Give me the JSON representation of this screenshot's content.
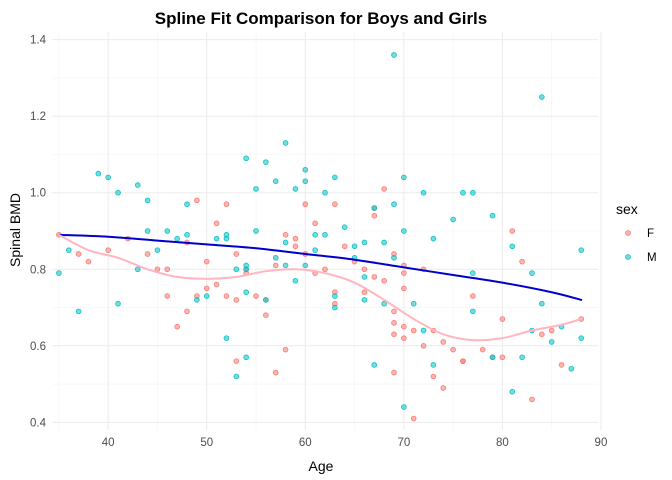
{
  "chart_data": {
    "type": "scatter",
    "title": "Spline Fit Comparison for Boys and Girls",
    "xlabel": "Age",
    "ylabel": "Spinal BMD",
    "xlim": [
      34.3,
      89.7
    ],
    "ylim": [
      0.38,
      1.42
    ],
    "x_ticks": [
      "40",
      "50",
      "60",
      "70",
      "80",
      "90"
    ],
    "x_tick_values": [
      40,
      50,
      60,
      70,
      80,
      90
    ],
    "y_ticks": [
      "0.4",
      "0.6",
      "0.8",
      "1.0",
      "1.2",
      "1.4"
    ],
    "y_tick_values": [
      0.4,
      0.6,
      0.8,
      1.0,
      1.2,
      1.4
    ],
    "grid": true,
    "legend": {
      "title": "sex",
      "position": "right",
      "entries": [
        {
          "label": "F",
          "color": "#F8766D"
        },
        {
          "label": "M",
          "color": "#00BFC4"
        }
      ]
    },
    "series": [
      {
        "name": "F",
        "color": "#F8766D",
        "points": [
          [
            35,
            0.89
          ],
          [
            37,
            0.84
          ],
          [
            38,
            0.82
          ],
          [
            40,
            0.85
          ],
          [
            42,
            0.88
          ],
          [
            44,
            0.84
          ],
          [
            45,
            0.8
          ],
          [
            46,
            0.73
          ],
          [
            46,
            0.8
          ],
          [
            47,
            0.65
          ],
          [
            48,
            0.69
          ],
          [
            48,
            0.87
          ],
          [
            49,
            0.73
          ],
          [
            49,
            0.98
          ],
          [
            50,
            0.82
          ],
          [
            50,
            0.75
          ],
          [
            51,
            0.92
          ],
          [
            51,
            0.76
          ],
          [
            52,
            0.97
          ],
          [
            52,
            0.73
          ],
          [
            53,
            0.56
          ],
          [
            53,
            0.84
          ],
          [
            53,
            0.72
          ],
          [
            54,
            0.8
          ],
          [
            54,
            0.79
          ],
          [
            55,
            0.73
          ],
          [
            56,
            0.68
          ],
          [
            56,
            0.72
          ],
          [
            57,
            0.81
          ],
          [
            57,
            0.53
          ],
          [
            58,
            0.59
          ],
          [
            58,
            0.89
          ],
          [
            59,
            0.88
          ],
          [
            59,
            0.86
          ],
          [
            60,
            0.97
          ],
          [
            60,
            0.84
          ],
          [
            61,
            0.79
          ],
          [
            61,
            0.92
          ],
          [
            62,
            0.8
          ],
          [
            63,
            0.74
          ],
          [
            63,
            0.71
          ],
          [
            63,
            0.97
          ],
          [
            64,
            0.86
          ],
          [
            65,
            0.82
          ],
          [
            66,
            0.8
          ],
          [
            66,
            0.74
          ],
          [
            67,
            0.96
          ],
          [
            67,
            0.94
          ],
          [
            67,
            0.78
          ],
          [
            68,
            1.01
          ],
          [
            68,
            0.77
          ],
          [
            69,
            0.69
          ],
          [
            69,
            0.84
          ],
          [
            69,
            0.66
          ],
          [
            69,
            0.63
          ],
          [
            69,
            0.53
          ],
          [
            70,
            0.79
          ],
          [
            70,
            0.81
          ],
          [
            70,
            0.62
          ],
          [
            70,
            0.75
          ],
          [
            70,
            0.65
          ],
          [
            71,
            0.64
          ],
          [
            71,
            0.41
          ],
          [
            72,
            0.8
          ],
          [
            72,
            0.6
          ],
          [
            73,
            0.64
          ],
          [
            73,
            0.52
          ],
          [
            74,
            0.61
          ],
          [
            74,
            0.49
          ],
          [
            75,
            0.59
          ],
          [
            76,
            0.56
          ],
          [
            76,
            0.56
          ],
          [
            77,
            0.73
          ],
          [
            78,
            0.59
          ],
          [
            79,
            0.57
          ],
          [
            80,
            0.57
          ],
          [
            80,
            0.67
          ],
          [
            81,
            0.9
          ],
          [
            82,
            0.82
          ],
          [
            83,
            0.46
          ],
          [
            84,
            0.63
          ],
          [
            85,
            0.64
          ],
          [
            86,
            0.55
          ],
          [
            88,
            0.67
          ]
        ]
      },
      {
        "name": "M",
        "color": "#00BFC4",
        "points": [
          [
            35,
            0.79
          ],
          [
            36,
            0.85
          ],
          [
            37,
            0.69
          ],
          [
            39,
            1.05
          ],
          [
            40,
            1.04
          ],
          [
            41,
            1.0
          ],
          [
            41,
            0.71
          ],
          [
            43,
            1.02
          ],
          [
            43,
            0.8
          ],
          [
            44,
            0.9
          ],
          [
            44,
            0.98
          ],
          [
            45,
            0.85
          ],
          [
            46,
            0.9
          ],
          [
            47,
            0.88
          ],
          [
            48,
            0.89
          ],
          [
            48,
            0.97
          ],
          [
            49,
            0.72
          ],
          [
            50,
            0.73
          ],
          [
            51,
            0.88
          ],
          [
            52,
            0.62
          ],
          [
            52,
            0.88
          ],
          [
            52,
            0.89
          ],
          [
            53,
            0.52
          ],
          [
            53,
            0.8
          ],
          [
            54,
            1.09
          ],
          [
            54,
            0.81
          ],
          [
            54,
            0.8
          ],
          [
            54,
            0.57
          ],
          [
            54,
            0.74
          ],
          [
            55,
            0.9
          ],
          [
            55,
            1.01
          ],
          [
            56,
            1.08
          ],
          [
            56,
            0.72
          ],
          [
            57,
            1.03
          ],
          [
            57,
            0.83
          ],
          [
            58,
            1.13
          ],
          [
            58,
            0.87
          ],
          [
            58,
            0.81
          ],
          [
            59,
            0.77
          ],
          [
            59,
            1.01
          ],
          [
            60,
            1.06
          ],
          [
            60,
            1.03
          ],
          [
            60,
            0.81
          ],
          [
            61,
            0.85
          ],
          [
            61,
            0.89
          ],
          [
            62,
            1.0
          ],
          [
            62,
            0.89
          ],
          [
            63,
            1.04
          ],
          [
            63,
            0.73
          ],
          [
            63,
            0.7
          ],
          [
            64,
            0.91
          ],
          [
            65,
            0.86
          ],
          [
            65,
            0.83
          ],
          [
            66,
            0.87
          ],
          [
            66,
            0.78
          ],
          [
            66,
            0.72
          ],
          [
            67,
            0.55
          ],
          [
            67,
            0.96
          ],
          [
            68,
            0.87
          ],
          [
            68,
            0.71
          ],
          [
            69,
            1.36
          ],
          [
            69,
            0.97
          ],
          [
            69,
            0.83
          ],
          [
            70,
            1.04
          ],
          [
            70,
            0.9
          ],
          [
            70,
            0.44
          ],
          [
            71,
            0.71
          ],
          [
            72,
            1.0
          ],
          [
            72,
            0.64
          ],
          [
            73,
            0.88
          ],
          [
            73,
            0.55
          ],
          [
            75,
            0.93
          ],
          [
            76,
            1.0
          ],
          [
            77,
            1.0
          ],
          [
            77,
            0.79
          ],
          [
            77,
            0.69
          ],
          [
            79,
            0.94
          ],
          [
            79,
            0.57
          ],
          [
            81,
            0.48
          ],
          [
            81,
            0.86
          ],
          [
            82,
            0.57
          ],
          [
            83,
            0.79
          ],
          [
            83,
            0.64
          ],
          [
            84,
            1.25
          ],
          [
            84,
            0.71
          ],
          [
            85,
            0.61
          ],
          [
            86,
            0.65
          ],
          [
            87,
            0.54
          ],
          [
            88,
            0.85
          ],
          [
            88,
            0.62
          ]
        ]
      }
    ],
    "fit_lines": [
      {
        "name": "M",
        "color": "#0000CD",
        "points": [
          [
            35,
            0.89
          ],
          [
            40,
            0.885
          ],
          [
            45,
            0.875
          ],
          [
            50,
            0.865
          ],
          [
            55,
            0.855
          ],
          [
            60,
            0.84
          ],
          [
            65,
            0.825
          ],
          [
            70,
            0.805
          ],
          [
            75,
            0.785
          ],
          [
            80,
            0.765
          ],
          [
            85,
            0.74
          ],
          [
            88,
            0.72
          ]
        ]
      },
      {
        "name": "F",
        "color": "#FFB6C1",
        "points": [
          [
            35,
            0.89
          ],
          [
            38,
            0.85
          ],
          [
            41,
            0.83
          ],
          [
            44,
            0.8
          ],
          [
            47,
            0.78
          ],
          [
            50,
            0.775
          ],
          [
            53,
            0.78
          ],
          [
            56,
            0.795
          ],
          [
            59,
            0.8
          ],
          [
            62,
            0.79
          ],
          [
            65,
            0.765
          ],
          [
            68,
            0.72
          ],
          [
            71,
            0.67
          ],
          [
            74,
            0.63
          ],
          [
            77,
            0.615
          ],
          [
            80,
            0.62
          ],
          [
            83,
            0.64
          ],
          [
            86,
            0.655
          ],
          [
            88,
            0.67
          ]
        ]
      }
    ]
  }
}
